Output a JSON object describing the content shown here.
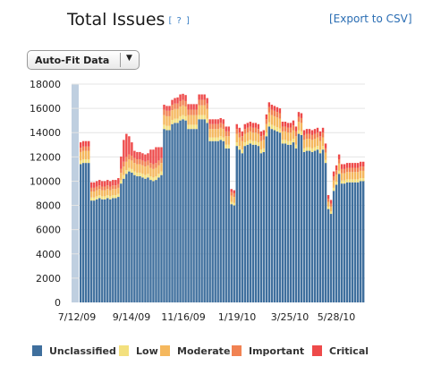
{
  "header": {
    "title": "Total Issues",
    "help_link": "[ ? ]",
    "export_link": "[Export to CSV]"
  },
  "controls": {
    "fit_dropdown_value": "Auto-Fit Data",
    "fit_dropdown_arrow": "▼"
  },
  "chart_data": {
    "type": "bar",
    "stacked": true,
    "y_ticks": [
      "18000",
      "16000",
      "14000",
      "12000",
      "10000",
      "8000",
      "6000",
      "4000",
      "2000",
      "0"
    ],
    "ylim": [
      0,
      18000
    ],
    "x_tick_labels": [
      "7/12/09",
      "9/14/09",
      "11/16/09",
      "1/19/10",
      "3/25/10",
      "5/28/10"
    ],
    "grid": true,
    "legend_position": "bottom",
    "colors": {
      "Unclassified": "#3f6f9d",
      "Low": "#f3e07e",
      "Moderate": "#f5b85e",
      "Important": "#f18252",
      "Critical": "#ee4a4a"
    },
    "series_names": [
      "Unclassified",
      "Low",
      "Moderate",
      "Important",
      "Critical"
    ],
    "unclassified": [
      11400,
      11500,
      11500,
      11500,
      8400,
      8400,
      8500,
      8600,
      8500,
      8500,
      8600,
      8500,
      8600,
      8600,
      8700,
      9800,
      10200,
      10600,
      10800,
      10700,
      10500,
      10400,
      10400,
      10300,
      10200,
      10300,
      10100,
      10000,
      10100,
      10300,
      10500,
      14300,
      14200,
      14200,
      14700,
      14800,
      14800,
      15000,
      15100,
      15000,
      14300,
      14300,
      14300,
      14300,
      15100,
      15100,
      15100,
      14800,
      13300,
      13300,
      13300,
      13300,
      13400,
      13300,
      12700,
      12700,
      8100,
      8000,
      12900,
      12600,
      12300,
      12900,
      13000,
      13100,
      13000,
      13000,
      12900,
      12300,
      12400,
      13700,
      14500,
      14300,
      14200,
      14100,
      14000,
      13100,
      13100,
      13000,
      13000,
      13200,
      12700,
      13900,
      13800,
      12400,
      12500,
      12500,
      12400,
      12500,
      12600,
      12300,
      12600,
      11500,
      7700,
      7300,
      9200,
      9700,
      10600,
      9800,
      9800,
      9900,
      9900,
      9900,
      9900,
      9900,
      10000,
      10000
    ],
    "low": [
      300,
      300,
      300,
      300,
      250,
      250,
      250,
      250,
      250,
      250,
      250,
      250,
      250,
      250,
      250,
      280,
      300,
      300,
      300,
      300,
      300,
      300,
      300,
      300,
      300,
      300,
      300,
      300,
      300,
      300,
      300,
      350,
      350,
      350,
      350,
      350,
      350,
      350,
      350,
      350,
      350,
      350,
      350,
      350,
      350,
      350,
      350,
      350,
      300,
      300,
      300,
      300,
      300,
      300,
      300,
      300,
      200,
      200,
      300,
      300,
      300,
      300,
      300,
      300,
      300,
      300,
      300,
      300,
      300,
      300,
      350,
      350,
      350,
      350,
      350,
      300,
      300,
      300,
      300,
      300,
      300,
      300,
      300,
      300,
      300,
      300,
      300,
      300,
      300,
      300,
      300,
      250,
      200,
      200,
      250,
      250,
      250,
      250,
      250,
      250,
      250,
      250,
      250,
      250,
      250,
      250
    ],
    "moderate": [
      700,
      700,
      700,
      700,
      500,
      500,
      500,
      500,
      500,
      500,
      500,
      500,
      500,
      500,
      500,
      600,
      700,
      700,
      700,
      700,
      700,
      700,
      700,
      700,
      700,
      700,
      700,
      700,
      700,
      700,
      700,
      800,
      800,
      800,
      800,
      800,
      800,
      800,
      800,
      800,
      800,
      800,
      800,
      800,
      800,
      800,
      800,
      800,
      700,
      700,
      700,
      700,
      700,
      700,
      700,
      700,
      500,
      500,
      700,
      700,
      700,
      700,
      700,
      700,
      700,
      700,
      700,
      700,
      700,
      700,
      800,
      800,
      800,
      800,
      800,
      700,
      700,
      700,
      700,
      700,
      700,
      700,
      700,
      700,
      700,
      700,
      700,
      700,
      700,
      700,
      700,
      600,
      400,
      400,
      600,
      600,
      600,
      600,
      600,
      600,
      600,
      600,
      600,
      600,
      600,
      600
    ],
    "important": [
      350,
      350,
      350,
      350,
      300,
      300,
      300,
      300,
      300,
      300,
      300,
      300,
      300,
      300,
      300,
      350,
      400,
      400,
      400,
      400,
      400,
      400,
      400,
      400,
      400,
      400,
      400,
      400,
      400,
      400,
      400,
      450,
      450,
      450,
      450,
      450,
      450,
      450,
      450,
      450,
      450,
      450,
      450,
      450,
      450,
      450,
      450,
      450,
      400,
      400,
      400,
      400,
      400,
      400,
      400,
      400,
      300,
      300,
      400,
      400,
      400,
      400,
      400,
      400,
      400,
      400,
      400,
      400,
      400,
      400,
      450,
      450,
      450,
      450,
      450,
      400,
      400,
      400,
      400,
      400,
      400,
      400,
      400,
      400,
      400,
      400,
      400,
      400,
      400,
      400,
      400,
      350,
      250,
      250,
      350,
      350,
      350,
      350,
      350,
      350,
      350,
      350,
      350,
      350,
      350,
      350
    ],
    "critical": [
      450,
      450,
      450,
      450,
      450,
      450,
      450,
      450,
      450,
      450,
      450,
      450,
      450,
      450,
      500,
      1000,
      1800,
      1900,
      1500,
      1100,
      600,
      600,
      600,
      600,
      600,
      600,
      1100,
      1200,
      1300,
      1100,
      900,
      400,
      400,
      400,
      400,
      450,
      500,
      550,
      500,
      500,
      450,
      450,
      450,
      450,
      450,
      450,
      450,
      450,
      400,
      400,
      400,
      400,
      400,
      400,
      400,
      400,
      250,
      250,
      400,
      400,
      400,
      400,
      400,
      400,
      400,
      400,
      400,
      400,
      400,
      400,
      400,
      400,
      400,
      400,
      400,
      400,
      400,
      400,
      400,
      400,
      400,
      400,
      400,
      400,
      400,
      400,
      400,
      400,
      400,
      400,
      400,
      400,
      300,
      300,
      400,
      400,
      400,
      400,
      400,
      400,
      400,
      400,
      400,
      400,
      400,
      400
    ]
  },
  "legend": {
    "items": [
      {
        "label": "Unclassified",
        "color": "#3f6f9d"
      },
      {
        "label": "Low",
        "color": "#f3e07e"
      },
      {
        "label": "Moderate",
        "color": "#f5b85e"
      },
      {
        "label": "Important",
        "color": "#f18252"
      },
      {
        "label": "Critical",
        "color": "#ee4a4a"
      }
    ]
  }
}
